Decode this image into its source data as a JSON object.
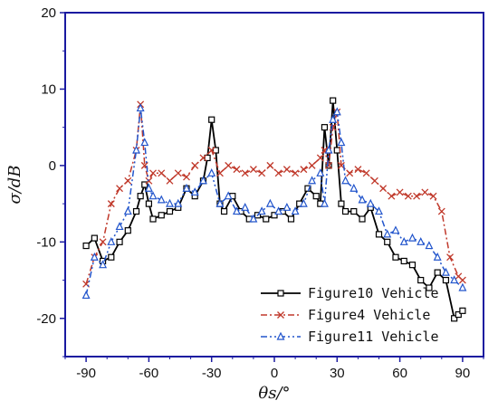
{
  "chart_data": {
    "type": "line",
    "xlabel": "θs/°",
    "ylabel": "σ/dB",
    "xlim": [
      -100,
      100
    ],
    "ylim": [
      -25,
      20
    ],
    "xticks": [
      -90,
      -60,
      -30,
      0,
      30,
      60,
      90
    ],
    "yticks": [
      -20,
      -10,
      0,
      10,
      20
    ],
    "legend_position": "bottom-right",
    "grid": false,
    "series": [
      {
        "name": "Figure10 Vehicle",
        "color": "#000000",
        "dash": "solid",
        "marker": "square",
        "x": [
          -90,
          -86,
          -82,
          -78,
          -74,
          -70,
          -66,
          -64,
          -62,
          -60,
          -58,
          -54,
          -50,
          -46,
          -42,
          -38,
          -34,
          -32,
          -30,
          -28,
          -26,
          -24,
          -20,
          -16,
          -12,
          -8,
          -4,
          0,
          4,
          8,
          12,
          16,
          20,
          22,
          24,
          26,
          28,
          30,
          32,
          34,
          38,
          42,
          46,
          50,
          54,
          58,
          62,
          66,
          70,
          74,
          78,
          82,
          86,
          88,
          90
        ],
        "y": [
          -10.5,
          -9.5,
          -12.5,
          -12,
          -10,
          -8.5,
          -6,
          -4,
          -2.5,
          -5,
          -7,
          -6.5,
          -6,
          -5.5,
          -3,
          -4,
          -2,
          1,
          6,
          2,
          -5,
          -6,
          -4,
          -6,
          -7,
          -6.5,
          -7,
          -6.5,
          -6,
          -7,
          -5,
          -3,
          -4,
          -5,
          5,
          0,
          8.5,
          2,
          -5,
          -6,
          -6,
          -7,
          -5.5,
          -9,
          -10,
          -12,
          -12.5,
          -13,
          -15,
          -16,
          -14,
          -15,
          -20,
          -19.5,
          -19
        ]
      },
      {
        "name": "Figure4 Vehicle",
        "color": "#c0392b",
        "dash": "dashdot",
        "marker": "x",
        "x": [
          -90,
          -86,
          -82,
          -78,
          -74,
          -70,
          -66,
          -64,
          -62,
          -60,
          -58,
          -54,
          -50,
          -46,
          -42,
          -38,
          -34,
          -30,
          -26,
          -22,
          -18,
          -14,
          -10,
          -6,
          -2,
          2,
          6,
          10,
          14,
          18,
          22,
          24,
          26,
          28,
          30,
          32,
          36,
          40,
          44,
          48,
          52,
          56,
          60,
          64,
          68,
          72,
          76,
          80,
          84,
          88,
          90
        ],
        "y": [
          -15.5,
          -12,
          -10,
          -5,
          -3,
          -2,
          2,
          8,
          0,
          -2,
          -1,
          -1,
          -2,
          -1,
          -1.5,
          0,
          1,
          2,
          -1,
          0,
          -0.5,
          -1,
          -0.5,
          -1,
          0,
          -1,
          -0.5,
          -1,
          -0.5,
          0,
          1,
          2,
          0,
          5,
          7,
          0,
          -1,
          -0.5,
          -1,
          -2,
          -3,
          -4,
          -3.5,
          -4,
          -4,
          -3.5,
          -4,
          -6,
          -12,
          -14.5,
          -15
        ]
      },
      {
        "name": "Figure11 Vehicle",
        "color": "#2255cc",
        "dash": "dashdotdot",
        "marker": "triangle",
        "x": [
          -90,
          -86,
          -82,
          -78,
          -74,
          -70,
          -66,
          -64,
          -62,
          -60,
          -58,
          -54,
          -50,
          -46,
          -42,
          -38,
          -34,
          -30,
          -26,
          -22,
          -18,
          -14,
          -10,
          -6,
          -2,
          2,
          6,
          10,
          14,
          18,
          22,
          24,
          26,
          28,
          30,
          32,
          34,
          38,
          42,
          46,
          50,
          54,
          58,
          62,
          66,
          70,
          74,
          78,
          82,
          86,
          90
        ],
        "y": [
          -17,
          -12,
          -13,
          -10,
          -8,
          -6,
          2,
          7.5,
          3,
          -3,
          -4,
          -4.5,
          -5,
          -5,
          -3,
          -3.5,
          -2,
          -1,
          -5,
          -4,
          -6,
          -5.5,
          -7,
          -6,
          -5,
          -6,
          -5.5,
          -6,
          -5,
          -2,
          -1,
          -5,
          2,
          6,
          7,
          3,
          -2,
          -3,
          -4.5,
          -5,
          -6,
          -9,
          -8.5,
          -10,
          -9.5,
          -10,
          -10.5,
          -12,
          -14,
          -15,
          -16
        ]
      }
    ]
  }
}
